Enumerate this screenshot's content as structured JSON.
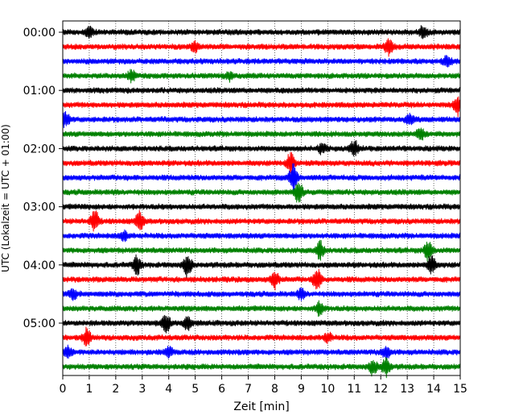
{
  "chart_data": {
    "type": "line",
    "title": "",
    "xlabel": "Zeit  [min]",
    "ylabel": "UTC (Lokalzeit = UTC + 01:00)",
    "xlim": [
      0,
      15
    ],
    "x_ticks": [
      "0",
      "1",
      "2",
      "3",
      "4",
      "5",
      "6",
      "7",
      "8",
      "9",
      "10",
      "11",
      "12",
      "13",
      "14",
      "15"
    ],
    "y_tick_labels": [
      "00:00",
      "01:00",
      "02:00",
      "03:00",
      "04:00",
      "05:00"
    ],
    "y_tick_rows": [
      0,
      4,
      8,
      12,
      16,
      20
    ],
    "row_interval_minutes": 15,
    "row_count": 24,
    "grid": "vertical dotted at each minute",
    "trace_colors": [
      "#000000",
      "#ff0000",
      "#0000ff",
      "#008000"
    ],
    "events": [
      {
        "row": 0,
        "minute": 1.0,
        "amp": 0.6
      },
      {
        "row": 0,
        "minute": 13.6,
        "amp": 0.8
      },
      {
        "row": 1,
        "minute": 5.0,
        "amp": 0.6
      },
      {
        "row": 1,
        "minute": 12.3,
        "amp": 1.0
      },
      {
        "row": 2,
        "minute": 14.5,
        "amp": 0.7
      },
      {
        "row": 3,
        "minute": 2.6,
        "amp": 0.7
      },
      {
        "row": 3,
        "minute": 6.3,
        "amp": 0.5
      },
      {
        "row": 5,
        "minute": 14.9,
        "amp": 1.3
      },
      {
        "row": 6,
        "minute": 0.1,
        "amp": 1.0
      },
      {
        "row": 6,
        "minute": 13.1,
        "amp": 0.7
      },
      {
        "row": 7,
        "minute": 13.5,
        "amp": 0.8
      },
      {
        "row": 8,
        "minute": 9.8,
        "amp": 0.7
      },
      {
        "row": 8,
        "minute": 11.0,
        "amp": 1.0
      },
      {
        "row": 9,
        "minute": 8.6,
        "amp": 1.3
      },
      {
        "row": 10,
        "minute": 8.7,
        "amp": 1.8
      },
      {
        "row": 11,
        "minute": 8.9,
        "amp": 1.5
      },
      {
        "row": 13,
        "minute": 1.2,
        "amp": 1.5
      },
      {
        "row": 13,
        "minute": 2.9,
        "amp": 1.2
      },
      {
        "row": 14,
        "minute": 2.3,
        "amp": 0.6
      },
      {
        "row": 15,
        "minute": 9.7,
        "amp": 1.2
      },
      {
        "row": 15,
        "minute": 13.8,
        "amp": 1.4
      },
      {
        "row": 16,
        "minute": 2.8,
        "amp": 1.2
      },
      {
        "row": 16,
        "minute": 4.7,
        "amp": 1.5
      },
      {
        "row": 16,
        "minute": 13.9,
        "amp": 1.2
      },
      {
        "row": 17,
        "minute": 8.0,
        "amp": 1.2
      },
      {
        "row": 17,
        "minute": 9.6,
        "amp": 1.4
      },
      {
        "row": 18,
        "minute": 0.4,
        "amp": 0.6
      },
      {
        "row": 18,
        "minute": 9.0,
        "amp": 0.6
      },
      {
        "row": 19,
        "minute": 9.7,
        "amp": 0.9
      },
      {
        "row": 20,
        "minute": 3.9,
        "amp": 1.2
      },
      {
        "row": 20,
        "minute": 4.7,
        "amp": 0.8
      },
      {
        "row": 21,
        "minute": 0.9,
        "amp": 1.1
      },
      {
        "row": 21,
        "minute": 10.0,
        "amp": 0.6
      },
      {
        "row": 22,
        "minute": 0.2,
        "amp": 0.7
      },
      {
        "row": 22,
        "minute": 4.0,
        "amp": 0.6
      },
      {
        "row": 22,
        "minute": 12.2,
        "amp": 0.8
      },
      {
        "row": 23,
        "minute": 11.7,
        "amp": 1.0
      },
      {
        "row": 23,
        "minute": 12.2,
        "amp": 1.2
      }
    ]
  }
}
